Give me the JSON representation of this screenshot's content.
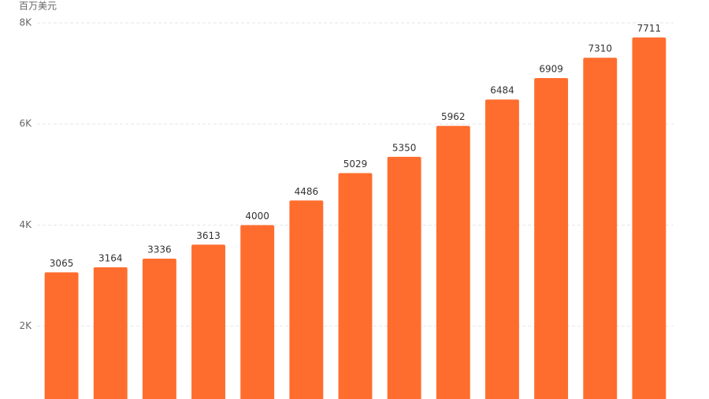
{
  "chart_data": {
    "type": "bar",
    "y_unit_label": "百万美元",
    "values": [
      3065,
      3164,
      3336,
      3613,
      4000,
      4486,
      5029,
      5350,
      5962,
      6484,
      6909,
      7310,
      7711
    ],
    "color": "#ff6d2e",
    "ylim": [
      560,
      8000
    ],
    "yticks": [
      {
        "value": 2000,
        "label": "2K"
      },
      {
        "value": 4000,
        "label": "4K"
      },
      {
        "value": 6000,
        "label": "6K"
      },
      {
        "value": 8000,
        "label": "8K"
      }
    ],
    "grid": true
  }
}
